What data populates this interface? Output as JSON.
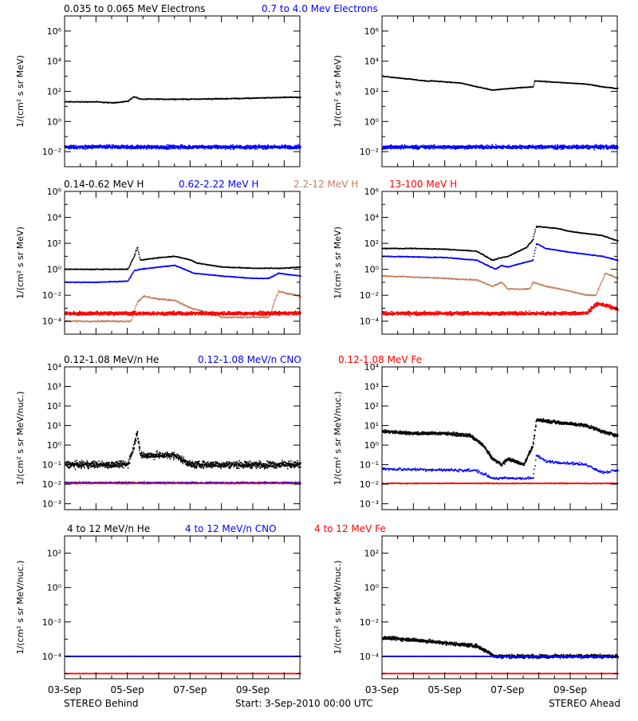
{
  "figure": {
    "footer_left": "STEREO Behind",
    "footer_center": "Start:  3-Sep-2010 00:00 UTC",
    "footer_right": "STEREO Ahead",
    "x_ticks": [
      "03-Sep",
      "05-Sep",
      "07-Sep",
      "09-Sep"
    ]
  },
  "chart_data": [
    {
      "id": "electrons-behind",
      "type": "scatter",
      "spacecraft": "STEREO Behind",
      "title_parts": [
        {
          "text": "0.035 to 0.065 MeV Electrons",
          "color": "#000000"
        },
        {
          "text": "0.7 to 4.0 Mev Electrons",
          "color": "#0000ff"
        }
      ],
      "ylabel": "1/(cm² s sr MeV)",
      "yscale": "log",
      "ylim": [
        0.001,
        10000000
      ],
      "ytick_exp": [
        -2,
        0,
        2,
        4,
        6
      ],
      "xlim": [
        0,
        7.5
      ],
      "x_unit": "days since 3-Sep-2010 00:00 UTC",
      "series": [
        {
          "name": "0.035 to 0.065 MeV Electrons",
          "color": "#000000",
          "noise": 0.04,
          "x": [
            0,
            1,
            1.5,
            2,
            2.2,
            2.4,
            3,
            4,
            5,
            6,
            7,
            7.5
          ],
          "y": [
            20,
            20,
            17,
            22,
            45,
            30,
            30,
            30,
            32,
            35,
            40,
            40
          ]
        },
        {
          "name": "0.7 to 4.0 Mev Electrons",
          "color": "#0000ff",
          "noise": 0.18,
          "x": [
            0,
            7.5
          ],
          "y": [
            0.02,
            0.02
          ]
        }
      ]
    },
    {
      "id": "electrons-ahead",
      "type": "scatter",
      "spacecraft": "STEREO Ahead",
      "title_parts": [],
      "ylabel": "1/(cm² s sr MeV)",
      "yscale": "log",
      "ylim": [
        0.001,
        10000000
      ],
      "ytick_exp": [
        -2,
        0,
        2,
        4,
        6
      ],
      "xlim": [
        0,
        7.5
      ],
      "series": [
        {
          "name": "0.035 to 0.065 MeV Electrons",
          "color": "#000000",
          "noise": 0.03,
          "x": [
            0,
            1,
            1.5,
            1.55,
            2.5,
            3,
            3.5,
            4,
            4.8,
            4.85,
            5.5,
            6.5,
            7,
            7.5
          ],
          "y": [
            1000,
            600,
            450,
            500,
            350,
            200,
            120,
            150,
            200,
            500,
            400,
            300,
            200,
            150
          ]
        },
        {
          "name": "0.7 to 4.0 Mev Electrons",
          "color": "#0000ff",
          "noise": 0.18,
          "x": [
            0,
            7.5
          ],
          "y": [
            0.02,
            0.02
          ]
        }
      ]
    },
    {
      "id": "protons-behind",
      "type": "scatter",
      "spacecraft": "STEREO Behind",
      "title_parts": [
        {
          "text": "0.14-0.62 MeV H",
          "color": "#000000"
        },
        {
          "text": "0.62-2.22 MeV H",
          "color": "#0000ff"
        },
        {
          "text": "2.2-12 MeV H",
          "color": "#c08060"
        },
        {
          "text": "13-100 MeV H",
          "color": "#ff0000"
        }
      ],
      "ylabel": "1/(cm² s sr MeV)",
      "yscale": "log",
      "ylim": [
        1e-05,
        1000000
      ],
      "ytick_exp": [
        -4,
        -2,
        0,
        2,
        4,
        6
      ],
      "xlim": [
        0,
        7.5
      ],
      "series": [
        {
          "name": "0.14-0.62 MeV H",
          "color": "#000000",
          "noise": 0.04,
          "x": [
            0,
            1,
            2,
            2.2,
            2.3,
            2.4,
            3,
            3.5,
            3.8,
            4,
            4.2,
            5,
            6,
            7,
            7.5
          ],
          "y": [
            1,
            1,
            1,
            10,
            50,
            5,
            8,
            10,
            7,
            5,
            3,
            1.5,
            1.2,
            1.2,
            1.5
          ]
        },
        {
          "name": "0.62-2.22 MeV H",
          "color": "#0000ff",
          "noise": 0.04,
          "x": [
            0,
            1,
            2,
            2.2,
            2.4,
            3,
            3.5,
            3.8,
            4.1,
            5,
            6,
            6.5,
            6.8,
            7.5
          ],
          "y": [
            0.1,
            0.1,
            0.12,
            0.8,
            1,
            1.5,
            2,
            1,
            0.5,
            0.3,
            0.2,
            0.2,
            0.5,
            0.3
          ]
        },
        {
          "name": "2.2-12 MeV H",
          "color": "#c08060",
          "noise": 0.08,
          "x": [
            0,
            2.1,
            2.3,
            2.5,
            3,
            3.5,
            4,
            4.5,
            5,
            6.5,
            6.8,
            7.5
          ],
          "y": [
            0.0001,
            0.0001,
            0.003,
            0.008,
            0.005,
            0.004,
            0.001,
            0.0005,
            0.0002,
            0.0002,
            0.02,
            0.008
          ]
        },
        {
          "name": "13-100 MeV H",
          "color": "#ff0000",
          "noise": 0.2,
          "x": [
            0,
            7.5
          ],
          "y": [
            0.0004,
            0.0004
          ]
        }
      ]
    },
    {
      "id": "protons-ahead",
      "type": "scatter",
      "spacecraft": "STEREO Ahead",
      "title_parts": [],
      "ylabel": "1/(cm² s sr MeV)",
      "yscale": "log",
      "ylim": [
        1e-05,
        1000000
      ],
      "ytick_exp": [
        -4,
        -2,
        0,
        2,
        4,
        6
      ],
      "xlim": [
        0,
        7.5
      ],
      "series": [
        {
          "name": "0.14-0.62 MeV H",
          "color": "#000000",
          "noise": 0.04,
          "x": [
            0,
            1,
            2,
            3,
            3.5,
            3.8,
            4,
            4.6,
            4.8,
            4.9,
            5.5,
            6,
            7,
            7.5
          ],
          "y": [
            40,
            40,
            35,
            25,
            5,
            8,
            10,
            50,
            200,
            2000,
            1500,
            800,
            400,
            150
          ]
        },
        {
          "name": "0.62-2.22 MeV H",
          "color": "#0000ff",
          "noise": 0.04,
          "x": [
            0,
            1,
            2,
            3,
            3.6,
            3.8,
            4,
            4.8,
            4.9,
            5.2,
            6,
            7,
            7.5
          ],
          "y": [
            10,
            9,
            8,
            5,
            1,
            2,
            1.5,
            5,
            100,
            40,
            20,
            10,
            5
          ]
        },
        {
          "name": "2.2-12 MeV H",
          "color": "#c08060",
          "noise": 0.06,
          "x": [
            0,
            1,
            2,
            3,
            3.5,
            3.8,
            4,
            4.7,
            4.8,
            5.2,
            6,
            6.5,
            6.8,
            7.1,
            7.5
          ],
          "y": [
            0.3,
            0.25,
            0.2,
            0.15,
            0.05,
            0.1,
            0.03,
            0.03,
            0.1,
            0.05,
            0.02,
            0.01,
            0.01,
            0.5,
            0.2
          ]
        },
        {
          "name": "13-100 MeV H",
          "color": "#ff0000",
          "noise": 0.2,
          "x": [
            0,
            6.5,
            6.8,
            7,
            7.5
          ],
          "y": [
            0.0004,
            0.0004,
            0.002,
            0.002,
            0.0008
          ]
        }
      ]
    },
    {
      "id": "heavy-low-behind",
      "type": "scatter",
      "spacecraft": "STEREO Behind",
      "title_parts": [
        {
          "text": "0.12-1.08 MeV/n He",
          "color": "#000000"
        },
        {
          "text": "0.12-1.08 MeV/n CNO",
          "color": "#0000ff"
        },
        {
          "text": "0.12-1.08 MeV Fe",
          "color": "#ff0000"
        }
      ],
      "ylabel": "1/(cm² s sr MeV/nuc.)",
      "yscale": "log",
      "ylim": [
        0.0005,
        10000
      ],
      "ytick_exp": [
        -3,
        -2,
        -1,
        0,
        1,
        2,
        3,
        4
      ],
      "xlim": [
        0,
        7.5
      ],
      "series": [
        {
          "name": "0.12-1.08 MeV/n He",
          "color": "#000000",
          "noise": 0.25,
          "x": [
            0,
            2,
            2.2,
            2.3,
            2.4,
            3,
            3.5,
            4,
            7.5
          ],
          "y": [
            0.1,
            0.1,
            1,
            5,
            0.3,
            0.3,
            0.3,
            0.1,
            0.1
          ]
        },
        {
          "name": "0.12-1.08 MeV/n CNO",
          "color": "#0000ff",
          "noise": 0.05,
          "x": [
            0,
            7.5
          ],
          "y": [
            0.012,
            0.012
          ]
        },
        {
          "name": "0.12-1.08 MeV Fe",
          "color": "#ff0000",
          "noise": 0.03,
          "x": [
            0,
            7.5
          ],
          "y": [
            0.011,
            0.011
          ]
        }
      ]
    },
    {
      "id": "heavy-low-ahead",
      "type": "scatter",
      "spacecraft": "STEREO Ahead",
      "title_parts": [],
      "ylabel": "1/(cm² s sr MeV/nuc.)",
      "yscale": "log",
      "ylim": [
        0.0005,
        10000
      ],
      "ytick_exp": [
        -3,
        -2,
        -1,
        0,
        1,
        2,
        3,
        4
      ],
      "xlim": [
        0,
        7.5
      ],
      "series": [
        {
          "name": "0.12-1.08 MeV/n He",
          "color": "#000000",
          "noise": 0.12,
          "x": [
            0,
            1,
            2,
            2.8,
            3.2,
            3.5,
            3.8,
            4,
            4.5,
            4.8,
            4.9,
            5.5,
            6.5,
            7,
            7.5
          ],
          "y": [
            5,
            4,
            4,
            3,
            1,
            0.2,
            0.1,
            0.2,
            0.1,
            1,
            20,
            15,
            10,
            5,
            3
          ]
        },
        {
          "name": "0.12-1.08 MeV/n CNO",
          "color": "#0000ff",
          "noise": 0.1,
          "x": [
            0,
            3,
            3.5,
            4.8,
            4.9,
            5.2,
            6.5,
            7,
            7.5
          ],
          "y": [
            0.06,
            0.05,
            0.02,
            0.02,
            0.3,
            0.15,
            0.1,
            0.04,
            0.05
          ]
        },
        {
          "name": "0.12-1.08 MeV Fe",
          "color": "#ff0000",
          "noise": 0.03,
          "x": [
            0,
            7.5
          ],
          "y": [
            0.011,
            0.011
          ]
        }
      ]
    },
    {
      "id": "heavy-high-behind",
      "type": "scatter",
      "spacecraft": "STEREO Behind",
      "title_parts": [
        {
          "text": "4 to 12 MeV/n He",
          "color": "#000000"
        },
        {
          "text": "4 to 12 MeV/n CNO",
          "color": "#0000ff"
        },
        {
          "text": "4 to 12 MeV Fe",
          "color": "#ff0000"
        }
      ],
      "ylabel": "1/(cm² s sr MeV/nuc.)",
      "yscale": "log",
      "ylim": [
        5e-06,
        1000
      ],
      "ytick_exp": [
        -4,
        -2,
        0,
        2
      ],
      "xlim": [
        0,
        7.5
      ],
      "series": [
        {
          "name": "4 to 12 MeV/n He",
          "color": "#000000",
          "noise": 0.01,
          "x": [
            0,
            7.5
          ],
          "y": [
            0.0001,
            0.0001
          ]
        },
        {
          "name": "4 to 12 MeV/n CNO",
          "color": "#0000ff",
          "noise": 0.01,
          "x": [
            0,
            7.5
          ],
          "y": [
            0.0001,
            0.0001
          ]
        },
        {
          "name": "4 to 12 MeV Fe",
          "color": "#ff0000",
          "noise": 0.01,
          "x": [
            0,
            7.5
          ],
          "y": [
            1e-05,
            1e-05
          ]
        }
      ]
    },
    {
      "id": "heavy-high-ahead",
      "type": "scatter",
      "spacecraft": "STEREO Ahead",
      "title_parts": [],
      "ylabel": "1/(cm² s sr MeV/nuc.)",
      "yscale": "log",
      "ylim": [
        5e-06,
        1000
      ],
      "ytick_exp": [
        -4,
        -2,
        0,
        2
      ],
      "xlim": [
        0,
        7.5
      ],
      "series": [
        {
          "name": "4 to 12 MeV/n He",
          "color": "#000000",
          "noise": 0.15,
          "x": [
            0,
            1,
            2,
            3,
            3.6,
            7.5
          ],
          "y": [
            0.0012,
            0.0009,
            0.0006,
            0.0004,
            0.0001,
            0.0001
          ]
        },
        {
          "name": "4 to 12 MeV/n CNO",
          "color": "#0000ff",
          "noise": 0.01,
          "x": [
            0,
            7.5
          ],
          "y": [
            0.0001,
            0.0001
          ]
        },
        {
          "name": "4 to 12 MeV Fe",
          "color": "#ff0000",
          "noise": 0.01,
          "x": [
            0,
            7.5
          ],
          "y": [
            1e-05,
            1e-05
          ]
        }
      ]
    }
  ]
}
